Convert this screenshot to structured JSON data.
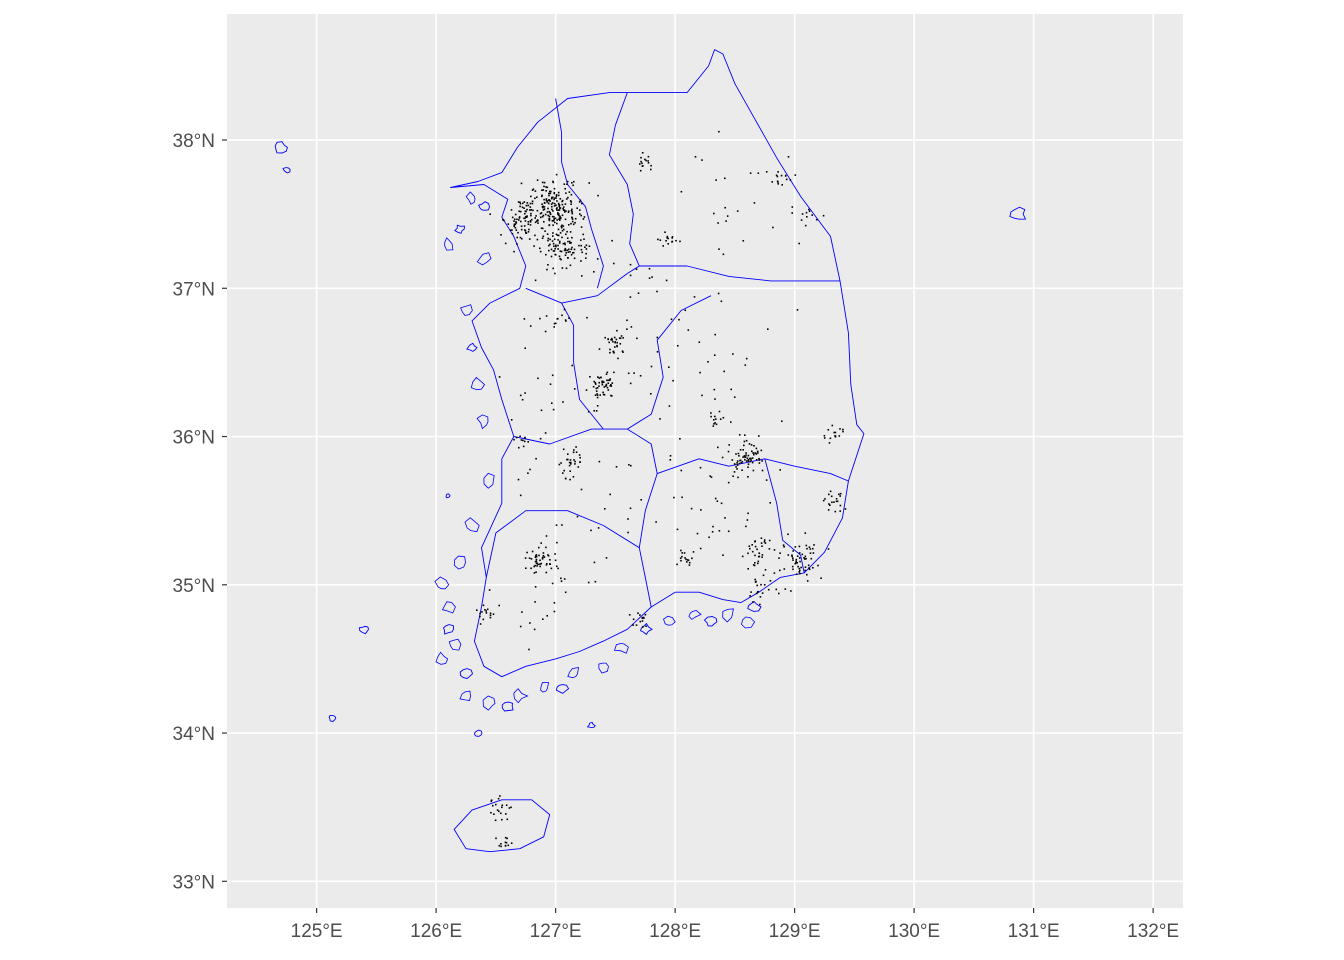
{
  "map": {
    "type": "choropleth-outline-with-points",
    "panel_background": "#ebebeb",
    "grid_color": "#ffffff",
    "boundary_color": "#0000ff",
    "point_color": "#000000",
    "xlim": [
      124.25,
      132.25
    ],
    "ylim": [
      32.82,
      38.85
    ],
    "x_ticks": [
      {
        "value": 125,
        "label": "125°E"
      },
      {
        "value": 126,
        "label": "126°E"
      },
      {
        "value": 127,
        "label": "127°E"
      },
      {
        "value": 128,
        "label": "128°E"
      },
      {
        "value": 129,
        "label": "129°E"
      },
      {
        "value": 130,
        "label": "130°E"
      },
      {
        "value": 131,
        "label": "131°E"
      },
      {
        "value": 132,
        "label": "132°E"
      }
    ],
    "y_ticks": [
      {
        "value": 33,
        "label": "33°N"
      },
      {
        "value": 34,
        "label": "34°N"
      },
      {
        "value": 35,
        "label": "35°N"
      },
      {
        "value": 36,
        "label": "36°N"
      },
      {
        "value": 37,
        "label": "37°N"
      },
      {
        "value": 38,
        "label": "38°N"
      }
    ],
    "mainland_outline": [
      [
        126.12,
        37.68
      ],
      [
        126.35,
        37.72
      ],
      [
        126.55,
        37.78
      ],
      [
        126.68,
        37.95
      ],
      [
        126.85,
        38.12
      ],
      [
        127.1,
        38.28
      ],
      [
        127.45,
        38.32
      ],
      [
        127.85,
        38.32
      ],
      [
        128.1,
        38.32
      ],
      [
        128.28,
        38.5
      ],
      [
        128.33,
        38.61
      ],
      [
        128.4,
        38.58
      ],
      [
        128.5,
        38.38
      ],
      [
        128.64,
        38.18
      ],
      [
        128.85,
        37.88
      ],
      [
        129.05,
        37.62
      ],
      [
        129.3,
        37.35
      ],
      [
        129.38,
        37.05
      ],
      [
        129.45,
        36.7
      ],
      [
        129.47,
        36.35
      ],
      [
        129.52,
        36.08
      ],
      [
        129.58,
        36.02
      ],
      [
        129.45,
        35.7
      ],
      [
        129.4,
        35.45
      ],
      [
        129.25,
        35.22
      ],
      [
        129.08,
        35.08
      ],
      [
        128.88,
        35.05
      ],
      [
        128.7,
        34.95
      ],
      [
        128.55,
        34.88
      ],
      [
        128.4,
        34.9
      ],
      [
        128.2,
        34.95
      ],
      [
        128.0,
        34.95
      ],
      [
        127.8,
        34.85
      ],
      [
        127.6,
        34.7
      ],
      [
        127.4,
        34.62
      ],
      [
        127.2,
        34.55
      ],
      [
        127.0,
        34.5
      ],
      [
        126.75,
        34.45
      ],
      [
        126.55,
        34.38
      ],
      [
        126.4,
        34.45
      ],
      [
        126.32,
        34.62
      ],
      [
        126.38,
        34.85
      ],
      [
        126.42,
        35.05
      ],
      [
        126.38,
        35.25
      ],
      [
        126.55,
        35.55
      ],
      [
        126.55,
        35.85
      ],
      [
        126.65,
        36.0
      ],
      [
        126.55,
        36.25
      ],
      [
        126.48,
        36.45
      ],
      [
        126.38,
        36.6
      ],
      [
        126.3,
        36.78
      ],
      [
        126.45,
        36.9
      ],
      [
        126.7,
        37.0
      ],
      [
        126.75,
        37.15
      ],
      [
        126.65,
        37.35
      ],
      [
        126.55,
        37.48
      ],
      [
        126.6,
        37.6
      ],
      [
        126.4,
        37.7
      ],
      [
        126.12,
        37.68
      ]
    ],
    "region_boundaries": [
      [
        [
          127.0,
          38.28
        ],
        [
          127.05,
          38.05
        ],
        [
          127.05,
          37.85
        ],
        [
          127.1,
          37.7
        ],
        [
          127.25,
          37.55
        ],
        [
          127.3,
          37.4
        ],
        [
          127.4,
          37.15
        ],
        [
          127.35,
          37.0
        ]
      ],
      [
        [
          127.6,
          38.32
        ],
        [
          127.5,
          38.1
        ],
        [
          127.45,
          37.9
        ],
        [
          127.6,
          37.7
        ],
        [
          127.65,
          37.5
        ],
        [
          127.62,
          37.3
        ],
        [
          127.7,
          37.15
        ],
        [
          128.1,
          37.15
        ],
        [
          128.45,
          37.08
        ],
        [
          128.8,
          37.05
        ],
        [
          129.38,
          37.05
        ]
      ],
      [
        [
          126.75,
          37.0
        ],
        [
          127.05,
          36.9
        ],
        [
          127.35,
          36.95
        ],
        [
          127.6,
          37.1
        ],
        [
          127.7,
          37.15
        ]
      ],
      [
        [
          127.05,
          36.9
        ],
        [
          127.15,
          36.75
        ],
        [
          127.15,
          36.5
        ],
        [
          127.2,
          36.25
        ],
        [
          127.4,
          36.05
        ],
        [
          127.6,
          36.05
        ],
        [
          127.8,
          36.15
        ],
        [
          127.9,
          36.4
        ],
        [
          127.85,
          36.65
        ],
        [
          128.05,
          36.85
        ],
        [
          128.3,
          36.95
        ]
      ],
      [
        [
          126.65,
          36.0
        ],
        [
          126.95,
          35.95
        ],
        [
          127.3,
          36.05
        ],
        [
          127.4,
          36.05
        ]
      ],
      [
        [
          127.6,
          36.05
        ],
        [
          127.8,
          35.95
        ],
        [
          127.85,
          35.75
        ],
        [
          127.75,
          35.5
        ],
        [
          127.7,
          35.25
        ],
        [
          127.75,
          35.05
        ],
        [
          127.8,
          34.85
        ]
      ],
      [
        [
          126.42,
          35.05
        ],
        [
          126.5,
          35.35
        ],
        [
          126.75,
          35.5
        ],
        [
          127.1,
          35.5
        ],
        [
          127.4,
          35.4
        ],
        [
          127.7,
          35.25
        ]
      ],
      [
        [
          127.85,
          35.75
        ],
        [
          128.2,
          35.85
        ],
        [
          128.45,
          35.8
        ],
        [
          128.75,
          35.85
        ],
        [
          129.0,
          35.8
        ],
        [
          129.3,
          35.75
        ],
        [
          129.45,
          35.7
        ]
      ],
      [
        [
          128.75,
          35.85
        ],
        [
          128.85,
          35.55
        ],
        [
          128.9,
          35.3
        ],
        [
          129.05,
          35.2
        ],
        [
          129.08,
          35.08
        ]
      ]
    ],
    "jeju_outline": [
      [
        126.15,
        33.35
      ],
      [
        126.3,
        33.48
      ],
      [
        126.55,
        33.55
      ],
      [
        126.8,
        33.55
      ],
      [
        126.95,
        33.45
      ],
      [
        126.9,
        33.3
      ],
      [
        126.7,
        33.22
      ],
      [
        126.45,
        33.2
      ],
      [
        126.25,
        33.22
      ],
      [
        126.15,
        33.35
      ]
    ],
    "islands": [
      {
        "lon": 130.87,
        "lat": 37.5,
        "r": 0.07
      },
      {
        "lon": 124.7,
        "lat": 37.95,
        "r": 0.06
      },
      {
        "lon": 125.13,
        "lat": 34.1,
        "r": 0.03
      },
      {
        "lon": 124.75,
        "lat": 37.8,
        "r": 0.03
      },
      {
        "lon": 125.4,
        "lat": 34.7,
        "r": 0.04
      },
      {
        "lon": 126.1,
        "lat": 34.7,
        "r": 0.05
      },
      {
        "lon": 126.25,
        "lat": 34.4,
        "r": 0.06
      },
      {
        "lon": 126.6,
        "lat": 34.18,
        "r": 0.05
      },
      {
        "lon": 127.05,
        "lat": 34.3,
        "r": 0.05
      },
      {
        "lon": 127.75,
        "lat": 34.7,
        "r": 0.05
      },
      {
        "lon": 128.3,
        "lat": 34.75,
        "r": 0.05
      },
      {
        "lon": 128.65,
        "lat": 34.85,
        "r": 0.06
      },
      {
        "lon": 126.3,
        "lat": 36.6,
        "r": 0.04
      },
      {
        "lon": 126.2,
        "lat": 37.4,
        "r": 0.04
      },
      {
        "lon": 126.4,
        "lat": 37.55,
        "r": 0.05
      },
      {
        "lon": 127.3,
        "lat": 34.05,
        "r": 0.03
      },
      {
        "lon": 126.35,
        "lat": 34.0,
        "r": 0.03
      },
      {
        "lon": 126.1,
        "lat": 35.6,
        "r": 0.02
      }
    ],
    "point_clusters": [
      {
        "lon": 126.98,
        "lat": 37.55,
        "sd": 0.12,
        "n": 220
      },
      {
        "lon": 127.05,
        "lat": 37.28,
        "sd": 0.1,
        "n": 90
      },
      {
        "lon": 126.7,
        "lat": 37.45,
        "sd": 0.08,
        "n": 60
      },
      {
        "lon": 127.38,
        "lat": 36.35,
        "sd": 0.06,
        "n": 45
      },
      {
        "lon": 127.48,
        "lat": 36.63,
        "sd": 0.05,
        "n": 30
      },
      {
        "lon": 128.6,
        "lat": 35.87,
        "sd": 0.08,
        "n": 70
      },
      {
        "lon": 129.05,
        "lat": 35.18,
        "sd": 0.08,
        "n": 60
      },
      {
        "lon": 126.87,
        "lat": 35.16,
        "sd": 0.06,
        "n": 45
      },
      {
        "lon": 127.12,
        "lat": 35.82,
        "sd": 0.05,
        "n": 25
      },
      {
        "lon": 128.68,
        "lat": 35.23,
        "sd": 0.06,
        "n": 30
      },
      {
        "lon": 129.32,
        "lat": 35.55,
        "sd": 0.05,
        "n": 20
      },
      {
        "lon": 129.35,
        "lat": 36.03,
        "sd": 0.04,
        "n": 15
      },
      {
        "lon": 126.53,
        "lat": 33.49,
        "sd": 0.05,
        "n": 20
      },
      {
        "lon": 126.55,
        "lat": 33.25,
        "sd": 0.05,
        "n": 12
      },
      {
        "lon": 127.73,
        "lat": 37.87,
        "sd": 0.04,
        "n": 15
      },
      {
        "lon": 127.93,
        "lat": 37.34,
        "sd": 0.04,
        "n": 15
      },
      {
        "lon": 128.9,
        "lat": 37.75,
        "sd": 0.04,
        "n": 12
      },
      {
        "lon": 129.12,
        "lat": 37.5,
        "sd": 0.04,
        "n": 10
      },
      {
        "lon": 126.39,
        "lat": 34.8,
        "sd": 0.04,
        "n": 15
      },
      {
        "lon": 127.7,
        "lat": 34.76,
        "sd": 0.04,
        "n": 15
      },
      {
        "lon": 128.08,
        "lat": 35.18,
        "sd": 0.04,
        "n": 15
      },
      {
        "lon": 128.35,
        "lat": 36.12,
        "sd": 0.04,
        "n": 12
      },
      {
        "lon": 126.72,
        "lat": 35.97,
        "sd": 0.04,
        "n": 10
      },
      {
        "lon": 128.72,
        "lat": 35.0,
        "sd": 0.08,
        "n": 25
      },
      {
        "lon": 127.0,
        "lat": 36.8,
        "sd": 0.05,
        "n": 12
      },
      {
        "lon": 128.48,
        "lat": 37.55,
        "sd": 0.3,
        "n": 25
      },
      {
        "lon": 128.3,
        "lat": 36.55,
        "sd": 0.3,
        "n": 30
      },
      {
        "lon": 127.1,
        "lat": 36.3,
        "sd": 0.35,
        "n": 40
      },
      {
        "lon": 127.2,
        "lat": 35.4,
        "sd": 0.35,
        "n": 30
      },
      {
        "lon": 128.3,
        "lat": 35.5,
        "sd": 0.3,
        "n": 35
      },
      {
        "lon": 127.6,
        "lat": 36.9,
        "sd": 0.35,
        "n": 30
      },
      {
        "lon": 126.85,
        "lat": 34.85,
        "sd": 0.2,
        "n": 15
      }
    ]
  }
}
